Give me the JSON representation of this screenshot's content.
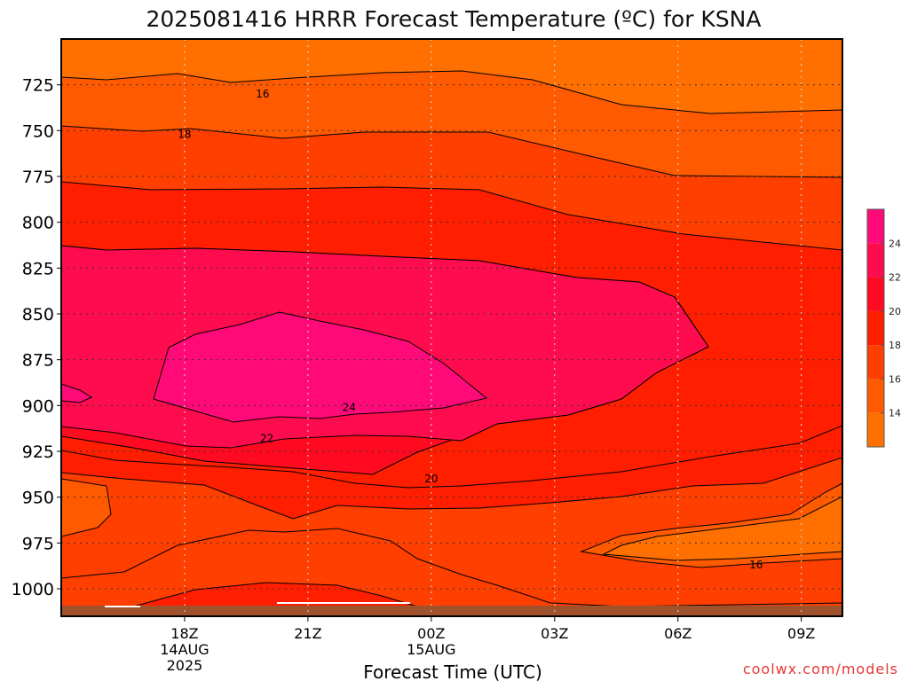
{
  "chart_data": {
    "type": "heatmap",
    "title": "2025081416 HRRR Forecast Temperature (ºC) for KSNA",
    "xlabel": "Forecast Time (UTC)",
    "ylabel": "",
    "y_ticks": [
      "725",
      "750",
      "775",
      "800",
      "825",
      "850",
      "875",
      "900",
      "925",
      "950",
      "975",
      "1000"
    ],
    "y_values": [
      725,
      750,
      775,
      800,
      825,
      850,
      875,
      900,
      925,
      950,
      975,
      1000
    ],
    "x_ticks": [
      {
        "label": "18Z",
        "sub1": "14AUG",
        "sub2": "2025"
      },
      {
        "label": "21Z",
        "sub1": "",
        "sub2": ""
      },
      {
        "label": "00Z",
        "sub1": "15AUG",
        "sub2": ""
      },
      {
        "label": "03Z",
        "sub1": "",
        "sub2": ""
      },
      {
        "label": "06Z",
        "sub1": "",
        "sub2": ""
      },
      {
        "label": "09Z",
        "sub1": "",
        "sub2": ""
      }
    ],
    "x_hours": [
      18,
      21,
      24,
      27,
      30,
      33
    ],
    "xlim_hours": [
      15,
      34
    ],
    "ylim_hpa": [
      700,
      1015
    ],
    "grid": "dotted",
    "contour_labels": [
      {
        "text": "16",
        "hour": 19.9,
        "hpa": 730
      },
      {
        "text": "18",
        "hour": 18.0,
        "hpa": 752
      },
      {
        "text": "24",
        "hour": 22.0,
        "hpa": 901
      },
      {
        "text": "22",
        "hour": 20.0,
        "hpa": 918
      },
      {
        "text": "20",
        "hour": 24.0,
        "hpa": 940
      },
      {
        "text": "16",
        "hour": 31.9,
        "hpa": 987
      }
    ],
    "colorbar": {
      "ticks": [
        "24",
        "22",
        "20",
        "18",
        "16",
        "14"
      ],
      "levels": [
        {
          "min": 12,
          "max": 14,
          "color": "#ff7000"
        },
        {
          "min": 14,
          "max": 16,
          "color": "#ff5a00"
        },
        {
          "min": 16,
          "max": 18,
          "color": "#ff3f00"
        },
        {
          "min": 18,
          "max": 20,
          "color": "#ff1e00"
        },
        {
          "min": 20,
          "max": 22,
          "color": "#ff0a20"
        },
        {
          "min": 22,
          "max": 24,
          "color": "#ff0c4e"
        },
        {
          "min": 24,
          "max": 26,
          "color": "#ff0a78"
        }
      ]
    },
    "ground_color": "#a0522d"
  },
  "credit": "coolwx.com/models"
}
